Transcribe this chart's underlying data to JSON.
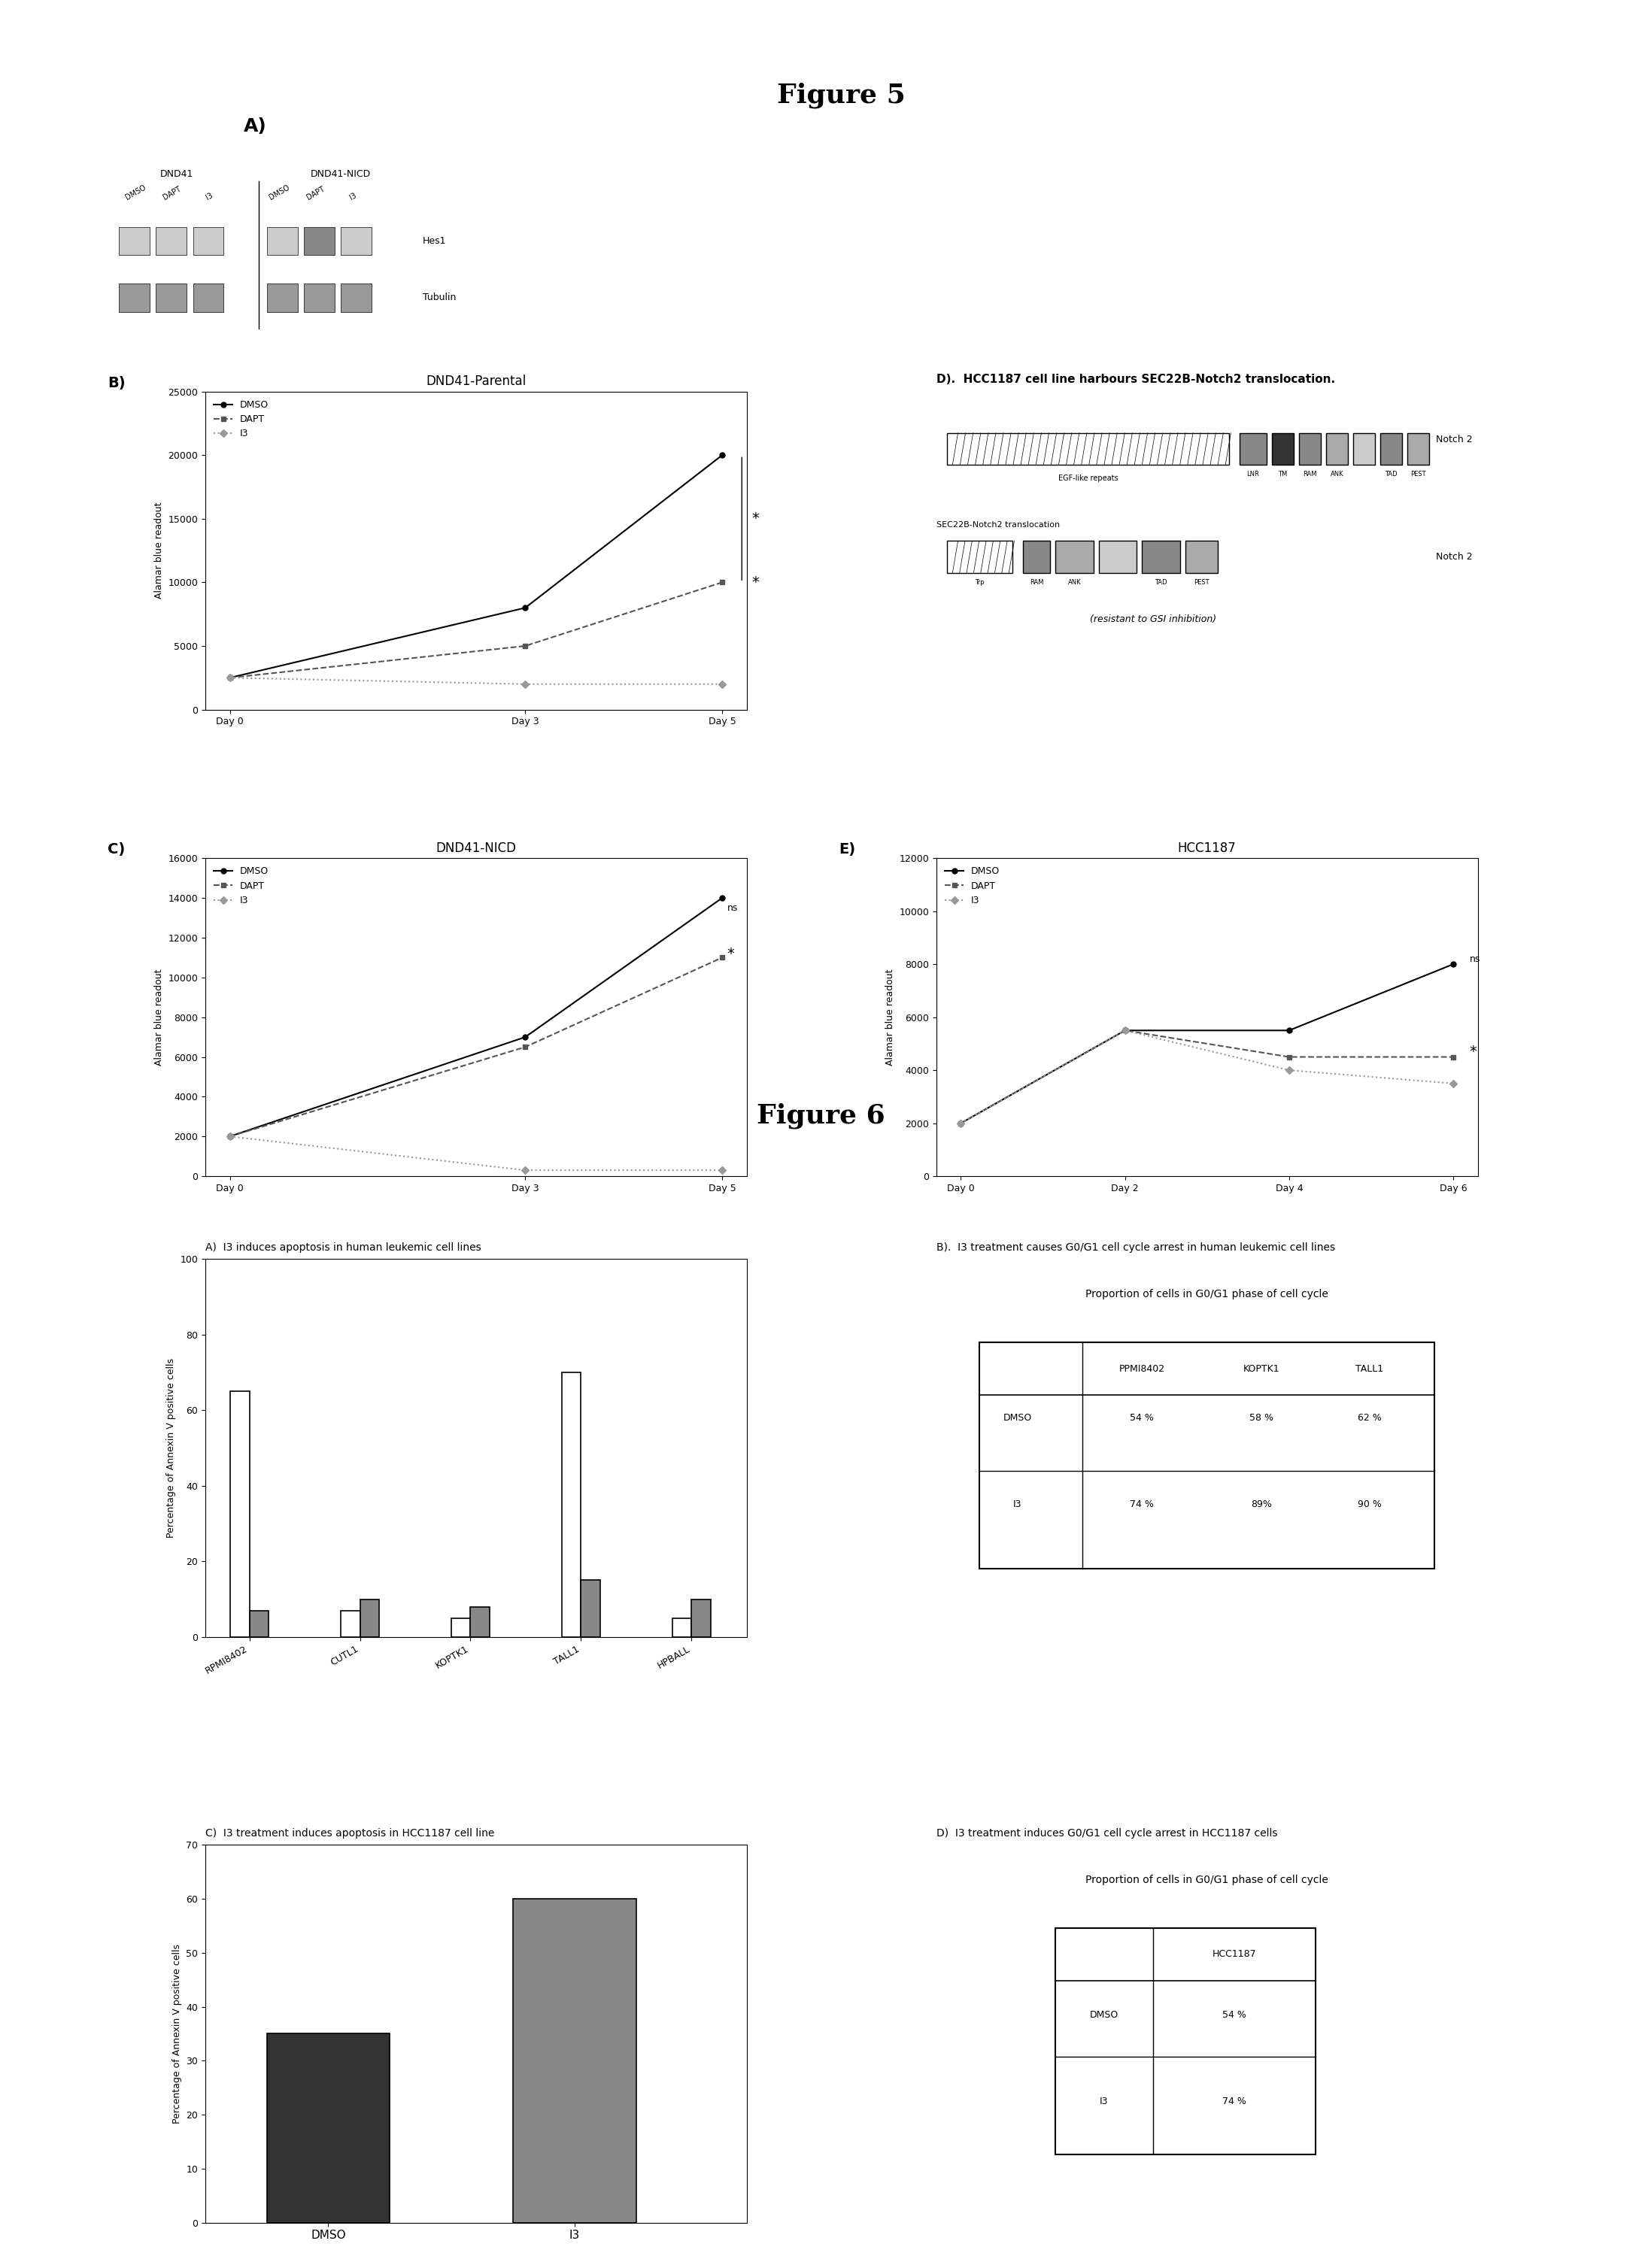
{
  "fig5_title": "Figure 5",
  "fig6_title": "Figure 6",
  "panelB_title": "DND41-Parental",
  "panelB_xlabel_days": [
    "Day 0",
    "Day 3",
    "Day 5"
  ],
  "panelB_ylabel": "Alamar blue readout",
  "panelB_ylim": [
    0,
    25000
  ],
  "panelB_yticks": [
    0,
    5000,
    10000,
    15000,
    20000,
    25000
  ],
  "panelB_DMSO": [
    2500,
    8000,
    20000
  ],
  "panelB_DAPT": [
    2500,
    5000,
    10000
  ],
  "panelB_I3": [
    2500,
    2000,
    2000
  ],
  "panelC_title": "DND41-NICD",
  "panelC_xlabel_days": [
    "Day 0",
    "Day 3",
    "Day 5"
  ],
  "panelC_ylabel": "Alamar blue readout",
  "panelC_ylim": [
    0,
    16000
  ],
  "panelC_yticks": [
    0,
    2000,
    4000,
    6000,
    8000,
    10000,
    12000,
    14000,
    16000
  ],
  "panelC_DMSO": [
    2000,
    7000,
    14000
  ],
  "panelC_DAPT": [
    2000,
    6500,
    11000
  ],
  "panelC_I3": [
    2000,
    300,
    300
  ],
  "panelE_title": "HCC1187",
  "panelE_xlabel_days": [
    "Day 0",
    "Day 2",
    "Day 4",
    "Day 6"
  ],
  "panelE_ylabel": "Alamar blue readout",
  "panelE_ylim": [
    0,
    12000
  ],
  "panelE_yticks": [
    0,
    2000,
    4000,
    6000,
    8000,
    10000,
    12000
  ],
  "panelE_DMSO": [
    2000,
    5500,
    5500,
    8000
  ],
  "panelE_DAPT": [
    2000,
    5500,
    4500,
    4500
  ],
  "panelE_I3": [
    2000,
    5500,
    4000,
    3500
  ],
  "legend_labels": [
    "DMSO",
    "DAPT",
    "I3"
  ],
  "fig6A_title": "A)  I3 induces apoptosis in human leukemic cell lines",
  "fig6A_categories": [
    "RPMI8402",
    "CUTL1",
    "KOPTK1",
    "TALL1",
    "HPBALL"
  ],
  "fig6A_DMSO": [
    65,
    7,
    5,
    70,
    5
  ],
  "fig6A_I3": [
    7,
    10,
    8,
    15,
    10
  ],
  "fig6A_ylabel": "Percentage of Annexin V positive cells",
  "fig6A_ylim": [
    0,
    100
  ],
  "fig6A_yticks": [
    0,
    20,
    40,
    60,
    80,
    100
  ],
  "fig6B_title": "B).  I3 treatment causes G0/G1 cell cycle arrest in human leukemic cell lines",
  "fig6B_subtitle": "Proportion of cells in G0/G1 phase of cell cycle",
  "fig6B_cols": [
    "PPMI8402",
    "KOPTK1",
    "TALL1"
  ],
  "fig6B_rows": [
    "DMSO",
    "I3"
  ],
  "fig6B_data": [
    [
      "54 %",
      "58 %",
      "62 %"
    ],
    [
      "74 %",
      "89%",
      "90 %"
    ]
  ],
  "fig6C_title": "C)  I3 treatment induces apoptosis in HCC1187 cell line",
  "fig6C_categories": [
    "DMSO",
    "I3"
  ],
  "fig6C_values": [
    35,
    60
  ],
  "fig6C_ylabel": "Percentage of Annexin V positive cells",
  "fig6C_ylim": [
    0,
    70
  ],
  "fig6C_yticks": [
    0,
    10,
    20,
    30,
    40,
    50,
    60,
    70
  ],
  "fig6D_title": "D)  I3 treatment induces G0/G1 cell cycle arrest in HCC1187 cells",
  "fig6D_subtitle": "Proportion of cells in G0/G1 phase of cell cycle",
  "fig6D_col": "HCC1187",
  "fig6D_rows": [
    "DMSO",
    "I3"
  ],
  "fig6D_data": [
    "54 %",
    "74 %"
  ],
  "panelA_label": "A)",
  "panelB_label": "B)",
  "panelC_label": "C)",
  "panelD_label": "D).  HCC1187 cell line harbours SEC22B-Notch2 translocation.",
  "panelE_label": "E)",
  "color_bg": "#ffffff",
  "color_text": "#000000"
}
